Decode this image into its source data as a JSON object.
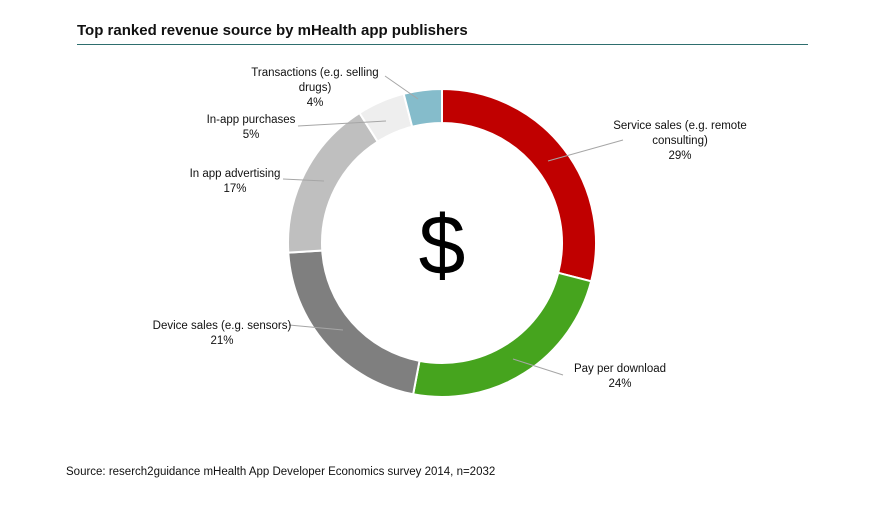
{
  "title": "Top ranked revenue source by mHealth app publishers",
  "center_symbol": "$",
  "source": "Source: reserch2guidance mHealth App Developer Economics survey 2014, n=2032",
  "chart_data": {
    "type": "pie",
    "variant": "donut",
    "title": "Top ranked revenue source by mHealth app publishers",
    "slices": [
      {
        "label_lines": [
          "Service sales (e.g. remote",
          "consulting)"
        ],
        "pct_text": "29%",
        "value": 29,
        "color": "#c00000"
      },
      {
        "label_lines": [
          "Pay per download"
        ],
        "pct_text": "24%",
        "value": 24,
        "color": "#46a41e"
      },
      {
        "label_lines": [
          "Device sales (e.g. sensors)"
        ],
        "pct_text": "21%",
        "value": 21,
        "color": "#7f7f7f"
      },
      {
        "label_lines": [
          "In app advertising"
        ],
        "pct_text": "17%",
        "value": 17,
        "color": "#bfbfbf"
      },
      {
        "label_lines": [
          "In-app purchases"
        ],
        "pct_text": "5%",
        "value": 5,
        "color": "#eeeeee"
      },
      {
        "label_lines": [
          "Transactions (e.g. selling",
          "drugs)"
        ],
        "pct_text": "4%",
        "value": 4,
        "color": "#85bccb"
      }
    ]
  }
}
